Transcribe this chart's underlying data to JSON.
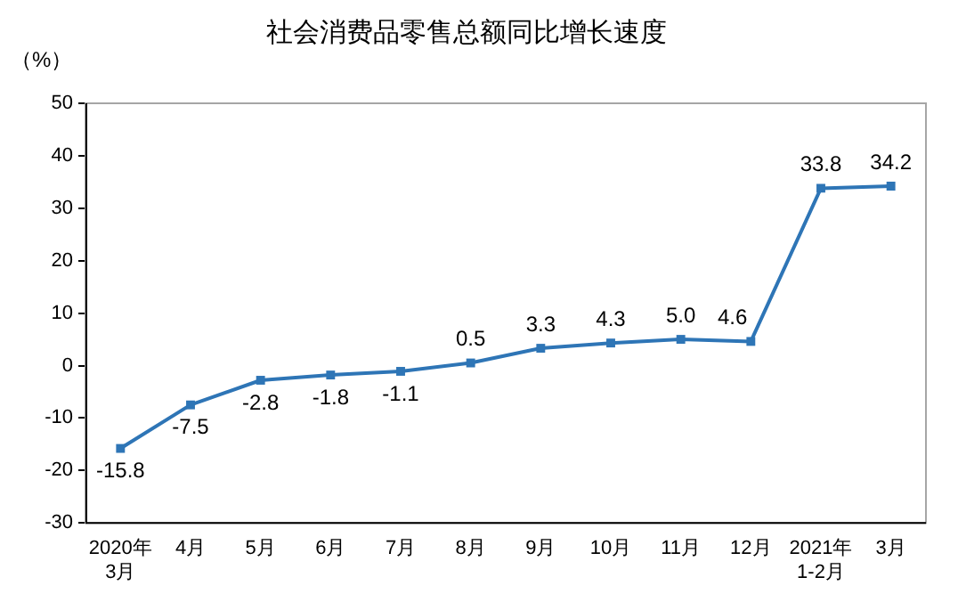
{
  "chart_data": {
    "type": "line",
    "title": "社会消费品零售总额同比增长速度",
    "ylabel": "（%）",
    "categories": [
      "2020年\n3月",
      "4月",
      "5月",
      "6月",
      "7月",
      "8月",
      "9月",
      "10月",
      "11月",
      "12月",
      "2021年\n1-2月",
      "3月"
    ],
    "series": [
      {
        "color": "#2e75b6",
        "values": [
          -15.8,
          -7.5,
          -2.8,
          -1.8,
          -1.1,
          0.5,
          3.3,
          4.3,
          5.0,
          4.6,
          33.8,
          34.2
        ],
        "value_labels": [
          "-15.8",
          "-7.5",
          "-2.8",
          "-1.8",
          "-1.1",
          "0.5",
          "3.3",
          "4.3",
          "5.0",
          "4.6",
          "33.8",
          "34.2"
        ]
      }
    ],
    "ylim": [
      -30,
      50
    ],
    "yticks": [
      -30,
      -20,
      -10,
      0,
      10,
      20,
      30,
      40,
      50
    ],
    "grid": false,
    "legend": false,
    "marker": "square",
    "line_style": "solid"
  }
}
